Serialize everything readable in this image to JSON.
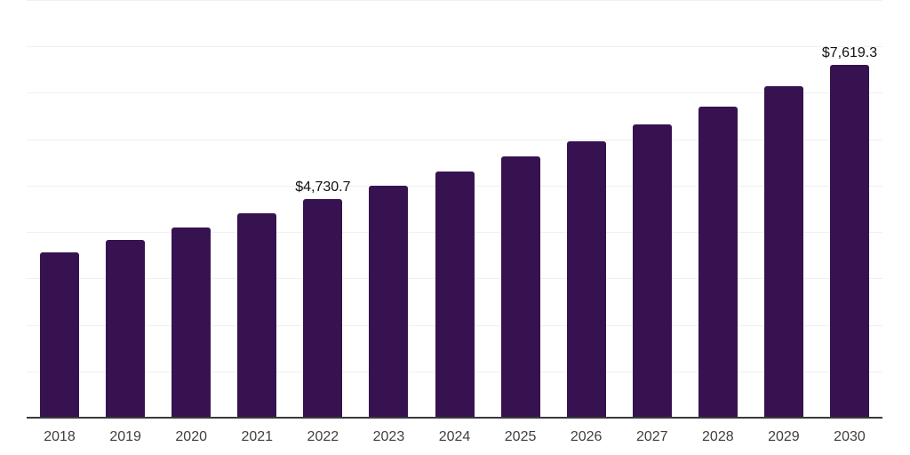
{
  "chart_data": {
    "type": "bar",
    "title": "",
    "xlabel": "",
    "ylabel": "",
    "categories": [
      "2018",
      "2019",
      "2020",
      "2021",
      "2022",
      "2023",
      "2024",
      "2025",
      "2026",
      "2027",
      "2028",
      "2029",
      "2030"
    ],
    "values": [
      3590,
      3845,
      4125,
      4420,
      4730.7,
      5025,
      5320,
      5655,
      5980,
      6345,
      6725,
      7170,
      7619.3
    ],
    "data_labels": [
      "",
      "",
      "",
      "",
      "$4,730.7",
      "",
      "",
      "",
      "",
      "",
      "",
      "",
      "$7,619.3"
    ],
    "ylim": [
      0,
      9000
    ],
    "gridline_interval": 1000,
    "grid": "horizontal-unlabeled",
    "legend": "none"
  },
  "colors": {
    "background": "#ffffff",
    "bar": "#371250",
    "grid": "#f0f0f0",
    "axis": "#3a3a3a",
    "bar_label_text": "#111111",
    "tick_label_text": "#3f3f3f"
  }
}
